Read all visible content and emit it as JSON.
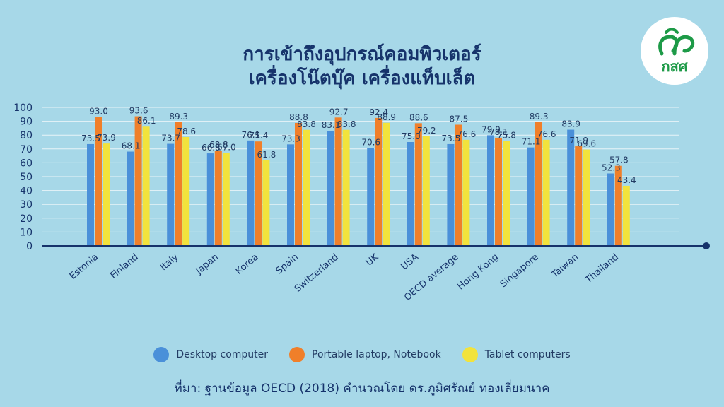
{
  "title": {
    "line1": "การเข้าถึงอุปกรณ์คอมพิวเตอร์",
    "line2": "เครื่องโน๊ตบุ๊ค เครื่องแท็บเล็ต"
  },
  "logo": {
    "text": "กสศ",
    "icon": "leaf-sprout-icon",
    "color": "#1d9a47"
  },
  "source": "ที่มา: ฐานข้อมูล OECD (2018) คำนวณโดย ดร.ภูมิศรัณย์ ทองเลี่ยมนาค",
  "chart_data": {
    "type": "bar",
    "title": "การเข้าถึงอุปกรณ์คอมพิวเตอร์ เครื่องโน๊ตบุ๊ค เครื่องแท็บเล็ต",
    "xlabel": "",
    "ylabel": "",
    "ylim": [
      0,
      100
    ],
    "yticks": [
      0,
      10,
      20,
      30,
      40,
      50,
      60,
      70,
      80,
      90,
      100
    ],
    "grid": true,
    "legend_position": "bottom",
    "categories": [
      "Estonia",
      "Finland",
      "Italy",
      "Japan",
      "Korea",
      "Spain",
      "Switzerland",
      "UK",
      "USA",
      "OECD average",
      "Hong Kong",
      "Singapore",
      "Taiwan",
      "Thailand"
    ],
    "series": [
      {
        "name": "Desktop computer",
        "color": "#4a90d9",
        "values": [
          73.5,
          68.1,
          73.7,
          66.8,
          76.1,
          73.3,
          83.1,
          70.6,
          75.0,
          73.5,
          79.9,
          71.1,
          83.9,
          52.3
        ]
      },
      {
        "name": "Portable laptop, Notebook",
        "color": "#f07f2a",
        "values": [
          93.0,
          93.6,
          89.3,
          68.8,
          75.4,
          88.8,
          92.7,
          92.4,
          88.6,
          87.5,
          78.1,
          89.3,
          71.9,
          57.8
        ]
      },
      {
        "name": "Tablet computers",
        "color": "#f2e33c",
        "values": [
          73.9,
          86.1,
          78.6,
          67.0,
          61.8,
          83.8,
          83.8,
          88.9,
          79.2,
          76.6,
          75.8,
          76.6,
          69.6,
          43.4
        ]
      }
    ]
  }
}
